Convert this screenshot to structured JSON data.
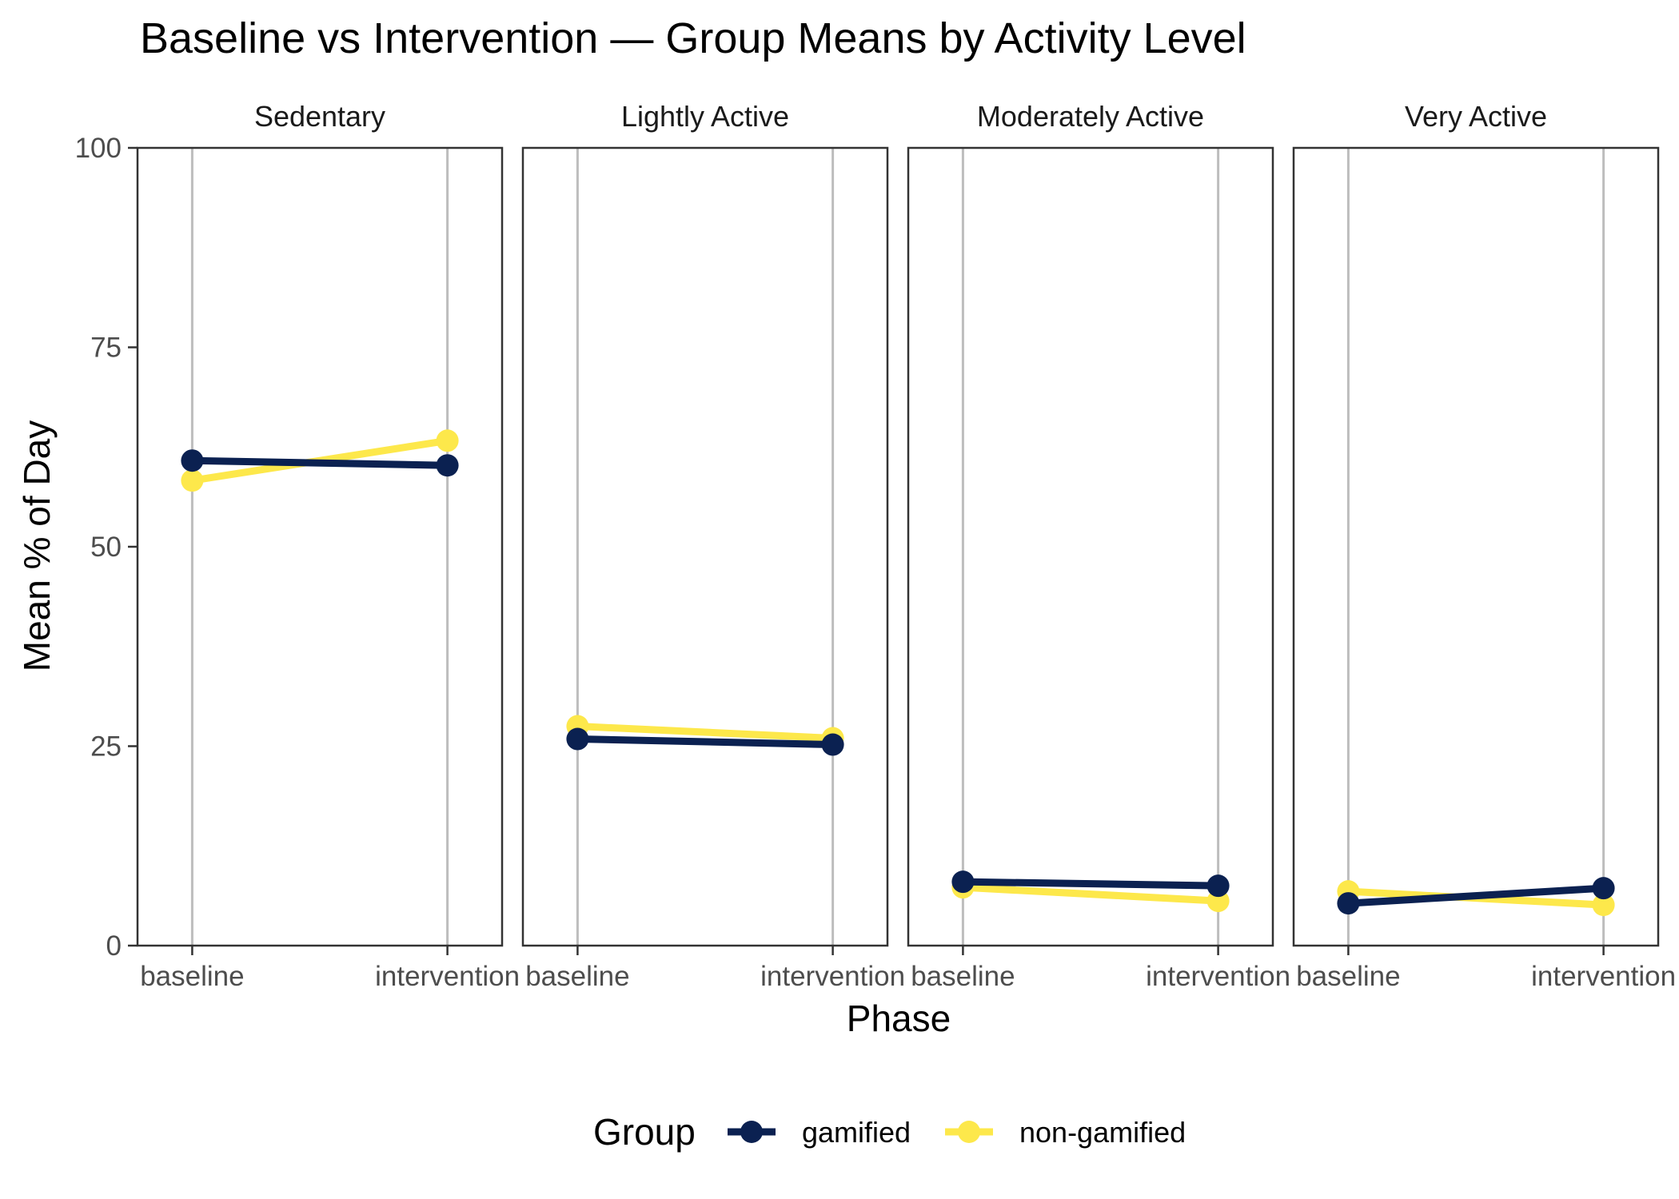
{
  "chart_data": {
    "type": "line",
    "title": "Baseline vs Intervention — Group Means by Activity Level",
    "xlabel": "Phase",
    "ylabel": "Mean % of Day",
    "ylim": [
      0,
      100
    ],
    "yticks": [
      0,
      25,
      50,
      75,
      100
    ],
    "categories": [
      "baseline",
      "intervention"
    ],
    "facets": [
      "Sedentary",
      "Lightly Active",
      "Moderately Active",
      "Very Active"
    ],
    "legend": {
      "title": "Group",
      "placement": "bottom"
    },
    "grid": "vertical major",
    "series": [
      {
        "name": "gamified",
        "color": "#0b2151",
        "values": [
          [
            60.8,
            60.2
          ],
          [
            25.9,
            25.2
          ],
          [
            8.0,
            7.5
          ],
          [
            5.3,
            7.2
          ]
        ]
      },
      {
        "name": "non-gamified",
        "color": "#fde84b",
        "values": [
          [
            58.3,
            63.3
          ],
          [
            27.5,
            26.0
          ],
          [
            7.3,
            5.6
          ],
          [
            6.8,
            5.1
          ]
        ]
      }
    ]
  }
}
